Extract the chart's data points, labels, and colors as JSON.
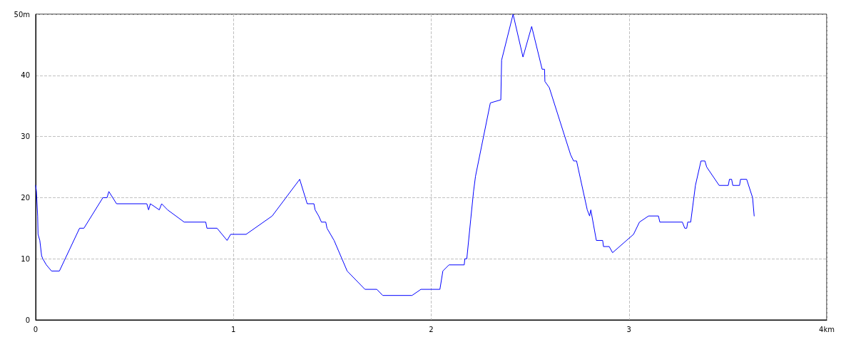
{
  "chart_data": {
    "type": "line",
    "xlim": [
      0,
      4
    ],
    "ylim": [
      0,
      50
    ],
    "xticks": [
      0,
      1,
      2,
      3,
      {
        "value": 4,
        "label": "4km"
      }
    ],
    "yticks": [
      0,
      10,
      20,
      30,
      40,
      {
        "value": 50,
        "label": "50m"
      }
    ],
    "grid": true,
    "marker": "none",
    "line_style": "solid",
    "series": [
      {
        "color": "#0000ff",
        "x": [
          0,
          0.004,
          0.01,
          0.012,
          0.021,
          0.03,
          0.036,
          0.054,
          0.08,
          0.12,
          0.222,
          0.244,
          0.34,
          0.361,
          0.37,
          0.409,
          0.562,
          0.571,
          0.58,
          0.625,
          0.637,
          0.667,
          0.751,
          0.86,
          0.866,
          0.917,
          0.968,
          0.986,
          1.064,
          1.196,
          1.335,
          1.373,
          1.407,
          1.413,
          1.431,
          1.445,
          1.467,
          1.473,
          1.509,
          1.575,
          1.665,
          1.725,
          1.755,
          1.903,
          1.948,
          2.044,
          2.059,
          2.09,
          2.167,
          2.17,
          2.18,
          2.2,
          2.214,
          2.224,
          2.299,
          2.352,
          2.356,
          2.414,
          2.464,
          2.508,
          2.561,
          2.573,
          2.575,
          2.597,
          2.705,
          2.72,
          2.735,
          2.789,
          2.801,
          2.807,
          2.835,
          2.867,
          2.871,
          2.9,
          2.917,
          3.023,
          3.053,
          3.099,
          3.149,
          3.156,
          3.27,
          3.282,
          3.292,
          3.297,
          3.312,
          3.336,
          3.364,
          3.384,
          3.393,
          3.456,
          3.502,
          3.508,
          3.519,
          3.525,
          3.559,
          3.564,
          3.595,
          3.625,
          3.633
        ],
        "values": [
          22,
          21,
          17,
          14,
          13,
          10.5,
          10,
          9,
          8,
          8,
          15,
          15,
          20,
          20,
          21,
          19,
          19,
          18,
          19,
          18,
          19,
          18,
          16,
          16,
          15,
          15,
          13,
          14,
          14,
          17,
          23,
          19,
          19,
          18,
          17,
          16,
          16,
          15,
          13,
          8,
          5,
          5,
          4,
          4,
          5,
          5,
          8,
          9,
          9,
          10,
          10,
          16.5,
          21,
          23.5,
          35.5,
          36,
          42.5,
          50,
          43,
          48,
          41,
          41,
          39,
          38,
          27,
          26,
          26,
          18,
          17,
          18,
          13,
          13,
          12,
          12,
          11,
          14,
          16,
          17,
          17,
          16,
          16,
          15,
          15,
          16,
          16,
          22,
          26,
          26,
          25,
          22,
          22,
          23,
          23,
          22,
          22,
          23,
          23,
          20,
          17
        ]
      }
    ]
  }
}
